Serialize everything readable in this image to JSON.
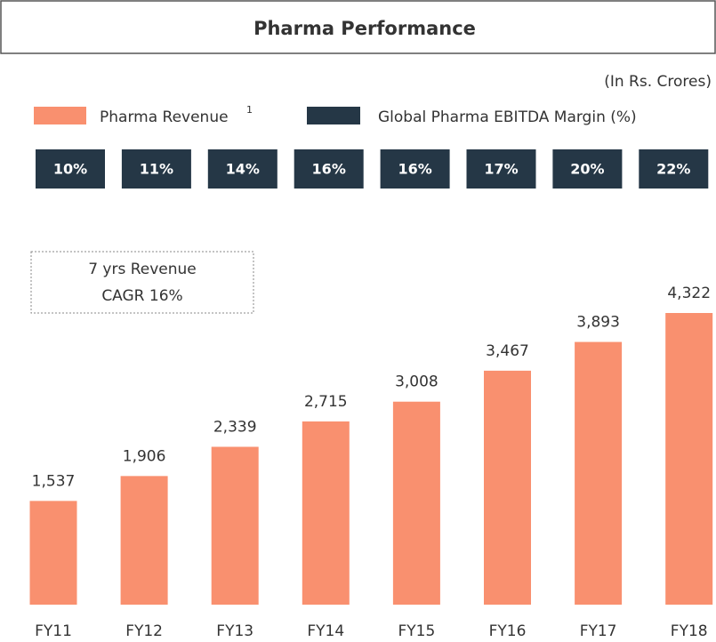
{
  "chart_data": {
    "type": "bar",
    "title": "Pharma Performance",
    "subtitle": "(In Rs. Crores)",
    "categories": [
      "FY11",
      "FY12",
      "FY13",
      "FY14",
      "FY15",
      "FY16",
      "FY17",
      "FY18"
    ],
    "series": [
      {
        "name": "Pharma Revenue",
        "name_note": "1",
        "color": "#f9906f",
        "values": [
          1537,
          1906,
          2339,
          2715,
          3008,
          3467,
          3893,
          4322
        ],
        "value_labels": [
          "1,537",
          "1,906",
          "2,339",
          "2,715",
          "3,008",
          "3,467",
          "3,893",
          "4,322"
        ]
      },
      {
        "name": "Global Pharma EBITDA Margin (%)",
        "color": "#253746",
        "values": [
          10,
          11,
          14,
          16,
          16,
          17,
          20,
          22
        ],
        "value_labels": [
          "10%",
          "11%",
          "14%",
          "16%",
          "16%",
          "17%",
          "20%",
          "22%"
        ]
      }
    ],
    "annotation": [
      "7 yrs Revenue",
      "CAGR 16%"
    ]
  }
}
